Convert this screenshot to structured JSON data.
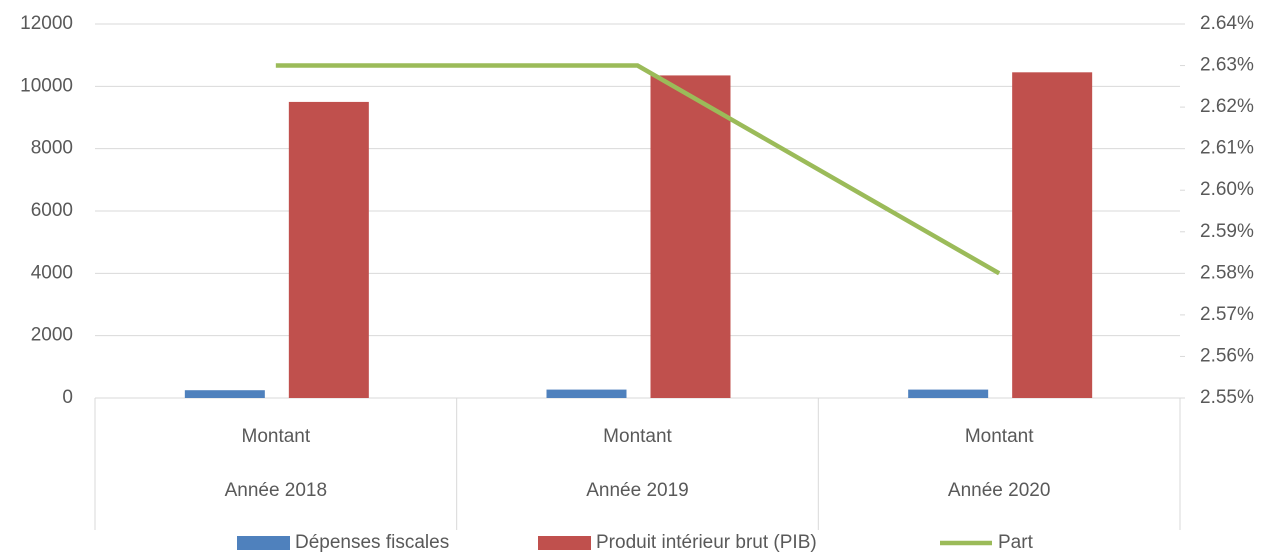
{
  "chart_data": {
    "type": "bar_line",
    "categories": [
      "Année 2018",
      "Année 2019",
      "Année 2020"
    ],
    "category_sublabels": [
      "Montant",
      "Montant",
      "Montant"
    ],
    "series": [
      {
        "name": "Dépenses fiscales",
        "type": "bar",
        "color": "#4f81bd",
        "values": [
          250,
          270,
          270
        ]
      },
      {
        "name": "Produit intérieur brut (PIB)",
        "type": "bar",
        "color": "#c0504d",
        "values": [
          9500,
          10350,
          10450
        ]
      },
      {
        "name": "Part",
        "type": "line",
        "axis": "y2",
        "color": "#9bbb59",
        "values": [
          2.63,
          2.63,
          2.58
        ]
      }
    ],
    "ylim": [
      0,
      12000
    ],
    "yticks": [
      0,
      2000,
      4000,
      6000,
      8000,
      10000,
      12000
    ],
    "y2lim": [
      2.55,
      2.64
    ],
    "y2ticks": [
      {
        "value": 2.55,
        "label": "2.55%"
      },
      {
        "value": 2.56,
        "label": "2.56%"
      },
      {
        "value": 2.57,
        "label": "2.57%"
      },
      {
        "value": 2.58,
        "label": "2.58%"
      },
      {
        "value": 2.59,
        "label": "2.59%"
      },
      {
        "value": 2.6,
        "label": "2.60%"
      },
      {
        "value": 2.61,
        "label": "2.61%"
      },
      {
        "value": 2.62,
        "label": "2.62%"
      },
      {
        "value": 2.63,
        "label": "2.63%"
      },
      {
        "value": 2.64,
        "label": "2.64%"
      }
    ],
    "grid": true,
    "legend": "bottom"
  }
}
